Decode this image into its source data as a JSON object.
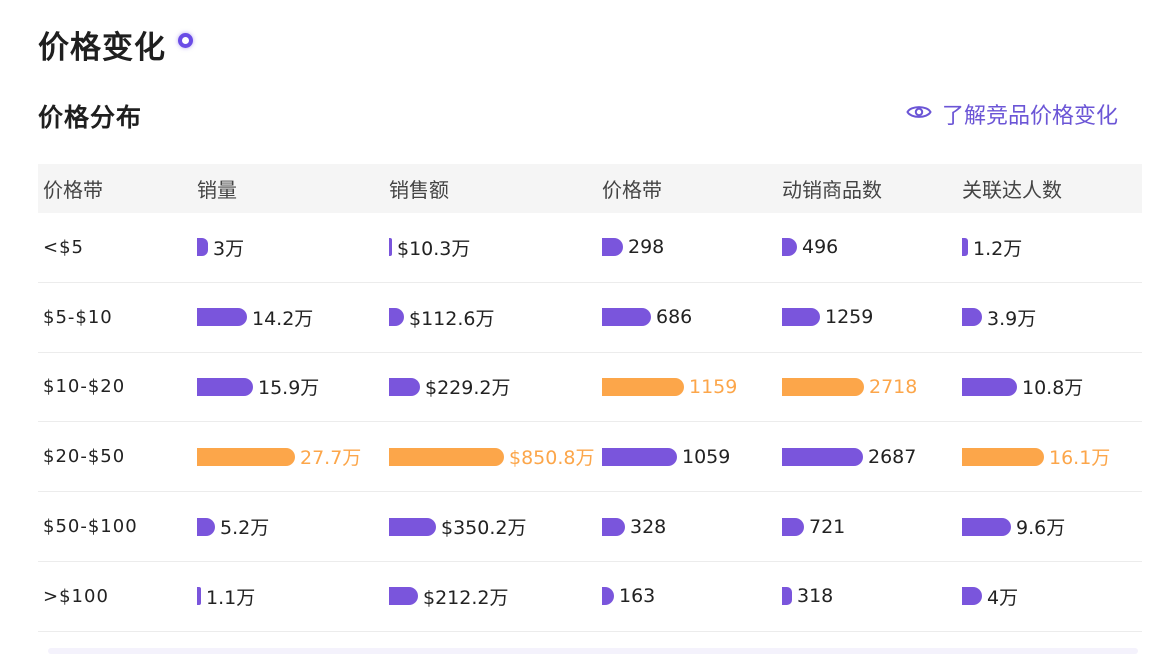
{
  "header": {
    "title": "价格变化"
  },
  "section": {
    "title": "价格分布"
  },
  "link": {
    "label": "了解竞品价格变化",
    "icon": "eye-icon"
  },
  "colors": {
    "bar": "#7a55dc",
    "max_bar": "#fca64a",
    "accent": "#6b55d6"
  },
  "table": {
    "headers": [
      "价格带",
      "销量",
      "销售额",
      "价格带",
      "动销商品数",
      "关联达人数"
    ],
    "rows": [
      {
        "band": "<$5",
        "cells": [
          {
            "label": "3万",
            "value": 3,
            "max": false
          },
          {
            "label": "$10.3万",
            "value": 10.3,
            "max": false
          },
          {
            "label": "298",
            "value": 298,
            "max": false
          },
          {
            "label": "496",
            "value": 496,
            "max": false
          },
          {
            "label": "1.2万",
            "value": 1.2,
            "max": false
          }
        ]
      },
      {
        "band": "$5-$10",
        "cells": [
          {
            "label": "14.2万",
            "value": 14.2,
            "max": false
          },
          {
            "label": "$112.6万",
            "value": 112.6,
            "max": false
          },
          {
            "label": "686",
            "value": 686,
            "max": false
          },
          {
            "label": "1259",
            "value": 1259,
            "max": false
          },
          {
            "label": "3.9万",
            "value": 3.9,
            "max": false
          }
        ]
      },
      {
        "band": "$10-$20",
        "cells": [
          {
            "label": "15.9万",
            "value": 15.9,
            "max": false
          },
          {
            "label": "$229.2万",
            "value": 229.2,
            "max": false
          },
          {
            "label": "1159",
            "value": 1159,
            "max": true
          },
          {
            "label": "2718",
            "value": 2718,
            "max": true
          },
          {
            "label": "10.8万",
            "value": 10.8,
            "max": false
          }
        ]
      },
      {
        "band": "$20-$50",
        "cells": [
          {
            "label": "27.7万",
            "value": 27.7,
            "max": true
          },
          {
            "label": "$850.8万",
            "value": 850.8,
            "max": true
          },
          {
            "label": "1059",
            "value": 1059,
            "max": false
          },
          {
            "label": "2687",
            "value": 2687,
            "max": false
          },
          {
            "label": "16.1万",
            "value": 16.1,
            "max": true
          }
        ]
      },
      {
        "band": "$50-$100",
        "cells": [
          {
            "label": "5.2万",
            "value": 5.2,
            "max": false
          },
          {
            "label": "$350.2万",
            "value": 350.2,
            "max": false
          },
          {
            "label": "328",
            "value": 328,
            "max": false
          },
          {
            "label": "721",
            "value": 721,
            "max": false
          },
          {
            "label": "9.6万",
            "value": 9.6,
            "max": false
          }
        ]
      },
      {
        "band": ">$100",
        "cells": [
          {
            "label": "1.1万",
            "value": 1.1,
            "max": false
          },
          {
            "label": "$212.2万",
            "value": 212.2,
            "max": false
          },
          {
            "label": "163",
            "value": 163,
            "max": false
          },
          {
            "label": "318",
            "value": 318,
            "max": false
          },
          {
            "label": "4万",
            "value": 4,
            "max": false
          }
        ]
      }
    ]
  }
}
